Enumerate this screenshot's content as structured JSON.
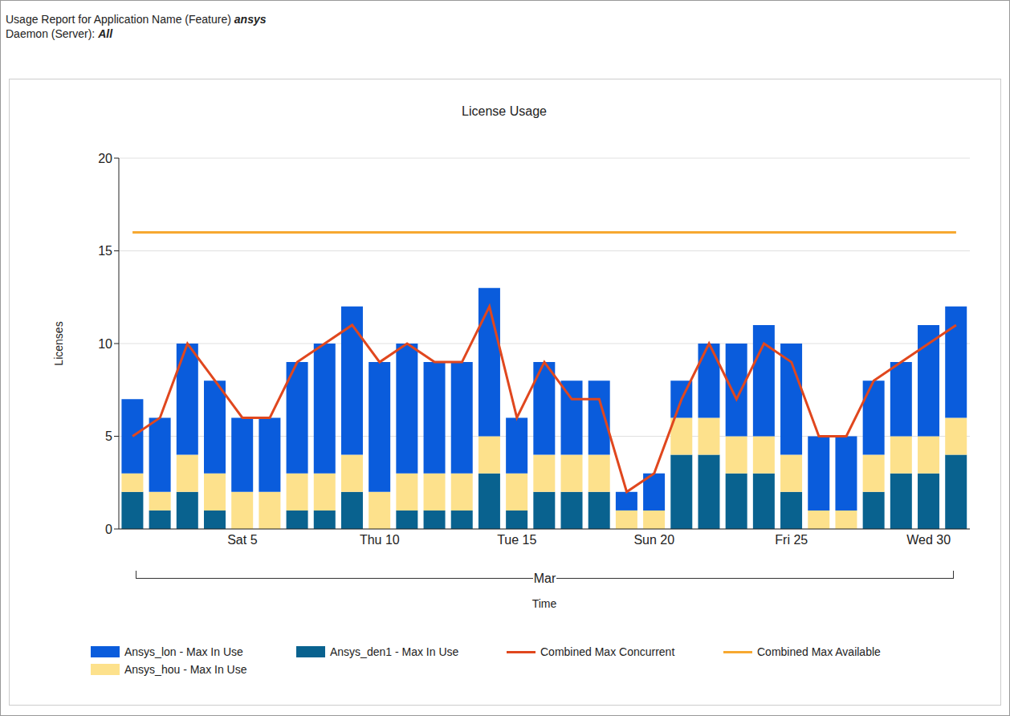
{
  "chart_data": {
    "type": "bar",
    "report_label": "Usage Report for Application Name (Feature)",
    "report_feature": "ansys",
    "server_label": "Daemon (Server):",
    "server_value": "All",
    "title": "License Usage",
    "y_label": "Licenses",
    "x_label": "Time",
    "x_period_label": "Mar",
    "categories": [
      null,
      null,
      null,
      null,
      "Sat 5",
      null,
      null,
      null,
      null,
      "Thu 10",
      null,
      null,
      null,
      null,
      "Tue 15",
      null,
      null,
      null,
      null,
      "Sun 20",
      null,
      null,
      null,
      null,
      "Fri 25",
      null,
      null,
      null,
      null,
      "Wed 30",
      null
    ],
    "series": [
      {
        "name": "Ansys_den1 - Max In Use",
        "type": "bar",
        "color": "#09628f",
        "values": [
          2,
          1,
          2,
          1,
          0,
          0,
          1,
          1,
          2,
          0,
          1,
          1,
          1,
          3,
          1,
          2,
          2,
          2,
          0,
          0,
          4,
          4,
          3,
          3,
          2,
          0,
          0,
          2,
          3,
          3,
          4
        ]
      },
      {
        "name": "Ansys_hou - Max In Use",
        "type": "bar",
        "color": "#fde18c",
        "values": [
          1,
          1,
          2,
          2,
          2,
          2,
          2,
          2,
          2,
          2,
          2,
          2,
          2,
          2,
          2,
          2,
          2,
          2,
          1,
          1,
          2,
          2,
          2,
          2,
          2,
          1,
          1,
          2,
          2,
          2,
          2
        ]
      },
      {
        "name": "Ansys_lon - Max In Use",
        "type": "bar",
        "color": "#0a5cdc",
        "values": [
          4,
          4,
          6,
          5,
          4,
          4,
          6,
          7,
          8,
          7,
          7,
          6,
          6,
          8,
          3,
          5,
          4,
          4,
          1,
          2,
          2,
          4,
          5,
          6,
          6,
          4,
          4,
          4,
          4,
          6,
          6
        ]
      },
      {
        "name": "Combined Max Concurrent",
        "type": "line",
        "color": "#e0471e",
        "values": [
          5,
          6,
          10,
          8,
          6,
          6,
          9,
          10,
          11,
          9,
          10,
          9,
          9,
          12,
          6,
          9,
          7,
          7,
          2,
          3,
          7,
          10,
          7,
          10,
          9,
          5,
          5,
          8,
          9,
          10,
          11
        ]
      },
      {
        "name": "Combined Max Available",
        "type": "line",
        "color": "#f7a830",
        "values": [
          16,
          16,
          16,
          16,
          16,
          16,
          16,
          16,
          16,
          16,
          16,
          16,
          16,
          16,
          16,
          16,
          16,
          16,
          16,
          16,
          16,
          16,
          16,
          16,
          16,
          16,
          16,
          16,
          16,
          16,
          16
        ]
      }
    ],
    "ylim": [
      0,
      20
    ],
    "yticks": [
      0,
      5,
      10,
      15,
      20
    ],
    "grid": true,
    "stacked": true,
    "legend": "bottom"
  }
}
